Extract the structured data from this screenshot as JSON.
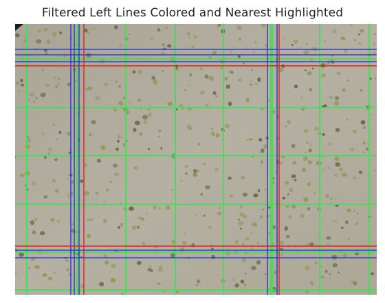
{
  "title": "Filtered Left Lines Colored and Nearest Highlighted",
  "image": {
    "description_id": "hemocytometer-grid-microscopy",
    "background_color": "#b3ad9f",
    "cell_color": "#8d9a57"
  },
  "line_colors": {
    "grid": "#33e84a",
    "filtered": "#1d2bd1",
    "nearest": "#e01e1e"
  },
  "lines": {
    "green_vertical_count": 9,
    "green_horizontal_count": 6,
    "blue_vertical_count": 5,
    "blue_horizontal_count": 5,
    "red_vertical_count": 2,
    "red_horizontal_count": 2
  }
}
